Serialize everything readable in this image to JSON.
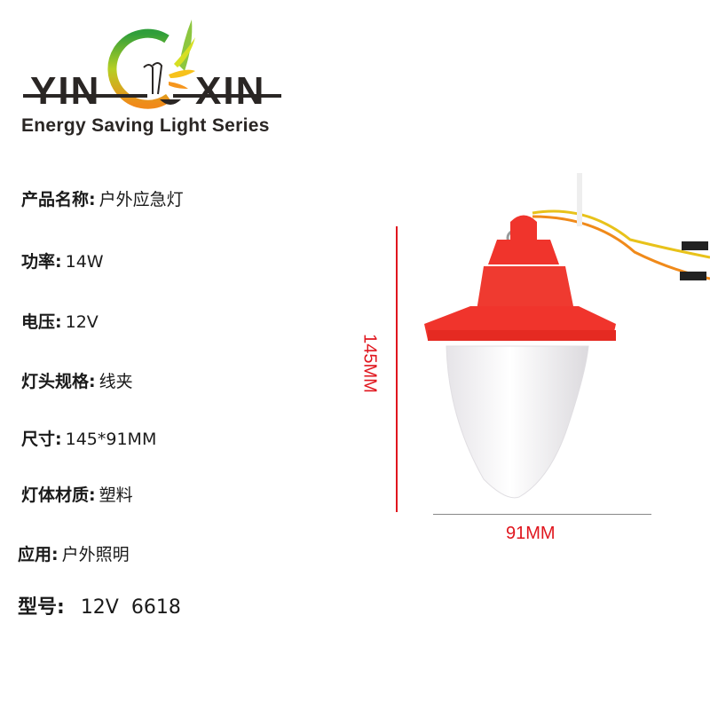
{
  "logo": {
    "left_text": "YIN",
    "right_text": "XIN",
    "tagline": "Energy Saving Light Series",
    "colors": {
      "green": "#3aa935",
      "yellow": "#e6d21a",
      "orange": "#f28c1c",
      "text": "#2a2624"
    }
  },
  "specs": [
    {
      "label": "产品名称:",
      "value": "户外应急灯"
    },
    {
      "label": "功率:",
      "value": "14W"
    },
    {
      "label": "电压:",
      "value": "12V"
    },
    {
      "label": "灯头规格:",
      "value": "线夹"
    },
    {
      "label": "尺寸:",
      "value": "145*91MM"
    },
    {
      "label": "灯体材质:",
      "value": "塑料"
    },
    {
      "label": "应用:",
      "value": "户外照明"
    },
    {
      "label": "型号:",
      "value": "12V  6618"
    }
  ],
  "dimensions": {
    "height_label": "145MM",
    "width_label": "91MM",
    "color": "#e0161e"
  },
  "product": {
    "icon": "emergency-lamp-image",
    "shade_color": "#f0342c",
    "body_color": "#f4f2f4"
  }
}
